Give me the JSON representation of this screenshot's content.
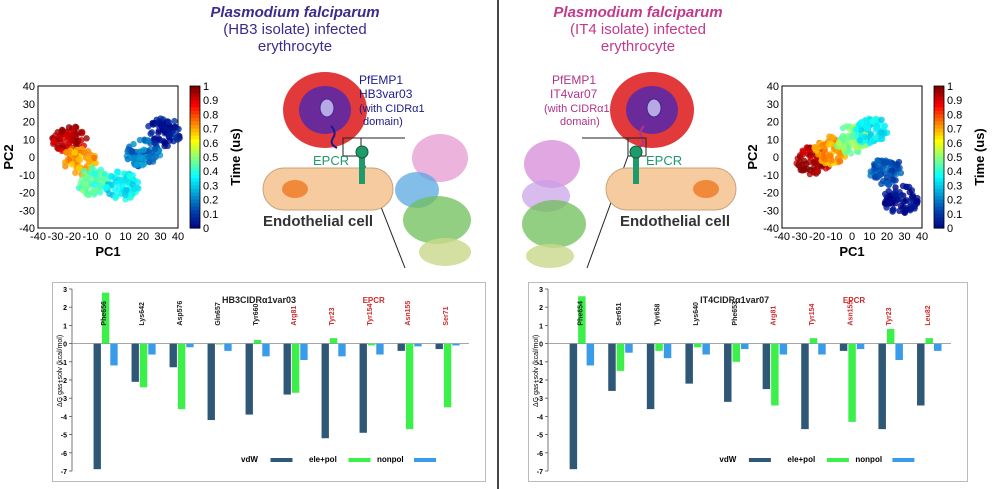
{
  "left": {
    "title_organism": "Plasmodium falciparum",
    "title_rest_1": "(HB3 isolate) infected",
    "title_rest_2": "erythrocyte",
    "title_color": "#3d2b8c",
    "pfemp_label_1": "PfEMP1",
    "pfemp_label_2": "HB3var03",
    "pfemp_label_3": "(with CIDRα1",
    "pfemp_label_4": "domain)",
    "pfemp_color": "#1a1a8c",
    "epcr_label": "EPCR",
    "endothelial_label": "Endothelial cell"
  },
  "right": {
    "title_organism": "Plasmodium falciparum",
    "title_rest_1": "(IT4 isolate) infected",
    "title_rest_2": "erythrocyte",
    "title_color": "#c23a8c",
    "pfemp_label_1": "PfEMP1",
    "pfemp_label_2": "IT4var07",
    "pfemp_label_3": "(with CIDRα1",
    "pfemp_label_4": "domain)",
    "pfemp_color": "#b0338a",
    "epcr_label": "EPCR",
    "endothelial_label": "Endothelial cell"
  },
  "colors": {
    "vdw": "#2f5877",
    "ele": "#3cf04a",
    "nonpol": "#3a9be8",
    "red_label": "#d02a2a",
    "epcr_green": "#1f9a6a",
    "rbc": "#e23a3a",
    "nucleus": "#6b2a9a",
    "endothelial": "#f7cba0",
    "endo_nucleus": "#f08a3a"
  },
  "chart_data": [
    {
      "type": "scatter",
      "panel": "left-pca",
      "xlabel": "PC1",
      "ylabel": "PC2",
      "xlim": [
        -40,
        40
      ],
      "ylim": [
        -40,
        40
      ],
      "xticks": [
        "-40",
        "-30",
        "-20",
        "-10",
        "0",
        "10",
        "20",
        "30",
        "40"
      ],
      "yticks": [
        "40",
        "30",
        "20",
        "10",
        "0",
        "-10",
        "-20",
        "-30",
        "-40"
      ],
      "colorbar_label": "Time (us)",
      "colorbar_ticks": [
        "1",
        "0.9",
        "0.8",
        "0.7",
        "0.6",
        "0.5",
        "0.4",
        "0.3",
        "0.2",
        "0.1",
        "0"
      ],
      "clusters": [
        {
          "x": -22,
          "y": 10,
          "t": 0.95
        },
        {
          "x": -16,
          "y": -2,
          "t": 0.72
        },
        {
          "x": -8,
          "y": -14,
          "t": 0.45
        },
        {
          "x": 8,
          "y": -16,
          "t": 0.35
        },
        {
          "x": 20,
          "y": 2,
          "t": 0.2
        },
        {
          "x": 32,
          "y": 14,
          "t": 0.05
        }
      ]
    },
    {
      "type": "scatter",
      "panel": "right-pca",
      "xlabel": "PC1",
      "ylabel": "PC2",
      "xlim": [
        -40,
        40
      ],
      "ylim": [
        -40,
        40
      ],
      "xticks": [
        "-40",
        "-30",
        "-20",
        "-10",
        "0",
        "10",
        "20",
        "30",
        "40"
      ],
      "yticks": [
        "40",
        "30",
        "20",
        "10",
        "0",
        "-10",
        "-20",
        "-30",
        "-40"
      ],
      "colorbar_label": "Time (us)",
      "colorbar_ticks": [
        "1",
        "0.9",
        "0.8",
        "0.7",
        "0.6",
        "0.5",
        "0.4",
        "0.3",
        "0.2",
        "0.1",
        "0"
      ],
      "clusters": [
        {
          "x": -22,
          "y": -2,
          "t": 0.95
        },
        {
          "x": -12,
          "y": 4,
          "t": 0.72
        },
        {
          "x": 0,
          "y": 10,
          "t": 0.5
        },
        {
          "x": 12,
          "y": 14,
          "t": 0.35
        },
        {
          "x": 20,
          "y": -8,
          "t": 0.15
        },
        {
          "x": 28,
          "y": -24,
          "t": 0.02
        }
      ]
    },
    {
      "type": "bar",
      "panel": "left-energy",
      "ylabel": "ΔG gas+solv (kcal/mol)",
      "ylim": [
        -7,
        3
      ],
      "yticks": [
        "3",
        "2",
        "1",
        "0",
        "-1",
        "-2",
        "-3",
        "-4",
        "-5",
        "-6",
        "-7"
      ],
      "domain_label": "HB3CIDRα1var03",
      "epcr_label": "EPCR",
      "categories": [
        "Phe656",
        "Lys642",
        "Asp576",
        "Gln657",
        "Tyr660",
        "Arg81",
        "Tyr23",
        "Tyr154",
        "Asn155",
        "Ser71"
      ],
      "category_groups": [
        "pfemp",
        "pfemp",
        "pfemp",
        "pfemp",
        "pfemp",
        "epcr",
        "epcr",
        "epcr",
        "epcr",
        "epcr"
      ],
      "legend": [
        "vdW",
        "ele+pol",
        "nonpol"
      ],
      "series": [
        {
          "name": "vdW",
          "values": [
            -6.9,
            -2.1,
            -1.3,
            -4.2,
            -3.9,
            -2.8,
            -5.2,
            -4.9,
            -0.4,
            -0.3
          ]
        },
        {
          "name": "ele+pol",
          "values": [
            2.8,
            -2.4,
            -3.6,
            -0.05,
            0.2,
            -2.7,
            0.3,
            -0.1,
            -4.7,
            -3.5
          ]
        },
        {
          "name": "nonpol",
          "values": [
            -1.2,
            -0.6,
            -0.2,
            -0.4,
            -0.7,
            -0.9,
            -0.7,
            -0.6,
            -0.15,
            -0.1
          ]
        }
      ]
    },
    {
      "type": "bar",
      "panel": "right-energy",
      "ylabel": "ΔG gas+solv (kcal/mol)",
      "ylim": [
        -7,
        3
      ],
      "yticks": [
        "3",
        "2",
        "1",
        "0",
        "-1",
        "-2",
        "-3",
        "-4",
        "-5",
        "-6",
        "-7"
      ],
      "domain_label": "IT4CIDRα1var07",
      "epcr_label": "EPCR",
      "categories": [
        "Phe654",
        "Ser651",
        "Tyr658",
        "Lys640",
        "Phe653",
        "Arg81",
        "Tyr154",
        "Asn155",
        "Tyr23",
        "Leu82"
      ],
      "category_groups": [
        "pfemp",
        "pfemp",
        "pfemp",
        "pfemp",
        "pfemp",
        "epcr",
        "epcr",
        "epcr",
        "epcr",
        "epcr"
      ],
      "legend": [
        "vdW",
        "ele+pol",
        "nonpol"
      ],
      "series": [
        {
          "name": "vdW",
          "values": [
            -6.9,
            -2.6,
            -3.6,
            -2.2,
            -3.2,
            -2.5,
            -4.7,
            -0.4,
            -4.7,
            -3.4
          ]
        },
        {
          "name": "ele+pol",
          "values": [
            2.6,
            -1.5,
            -0.4,
            -0.2,
            -1.0,
            -3.4,
            0.3,
            -4.3,
            0.8,
            0.3
          ]
        },
        {
          "name": "nonpol",
          "values": [
            -1.2,
            -0.5,
            -0.8,
            -0.6,
            -0.3,
            -0.6,
            -0.6,
            -0.3,
            -0.9,
            -0.4
          ]
        }
      ]
    }
  ]
}
